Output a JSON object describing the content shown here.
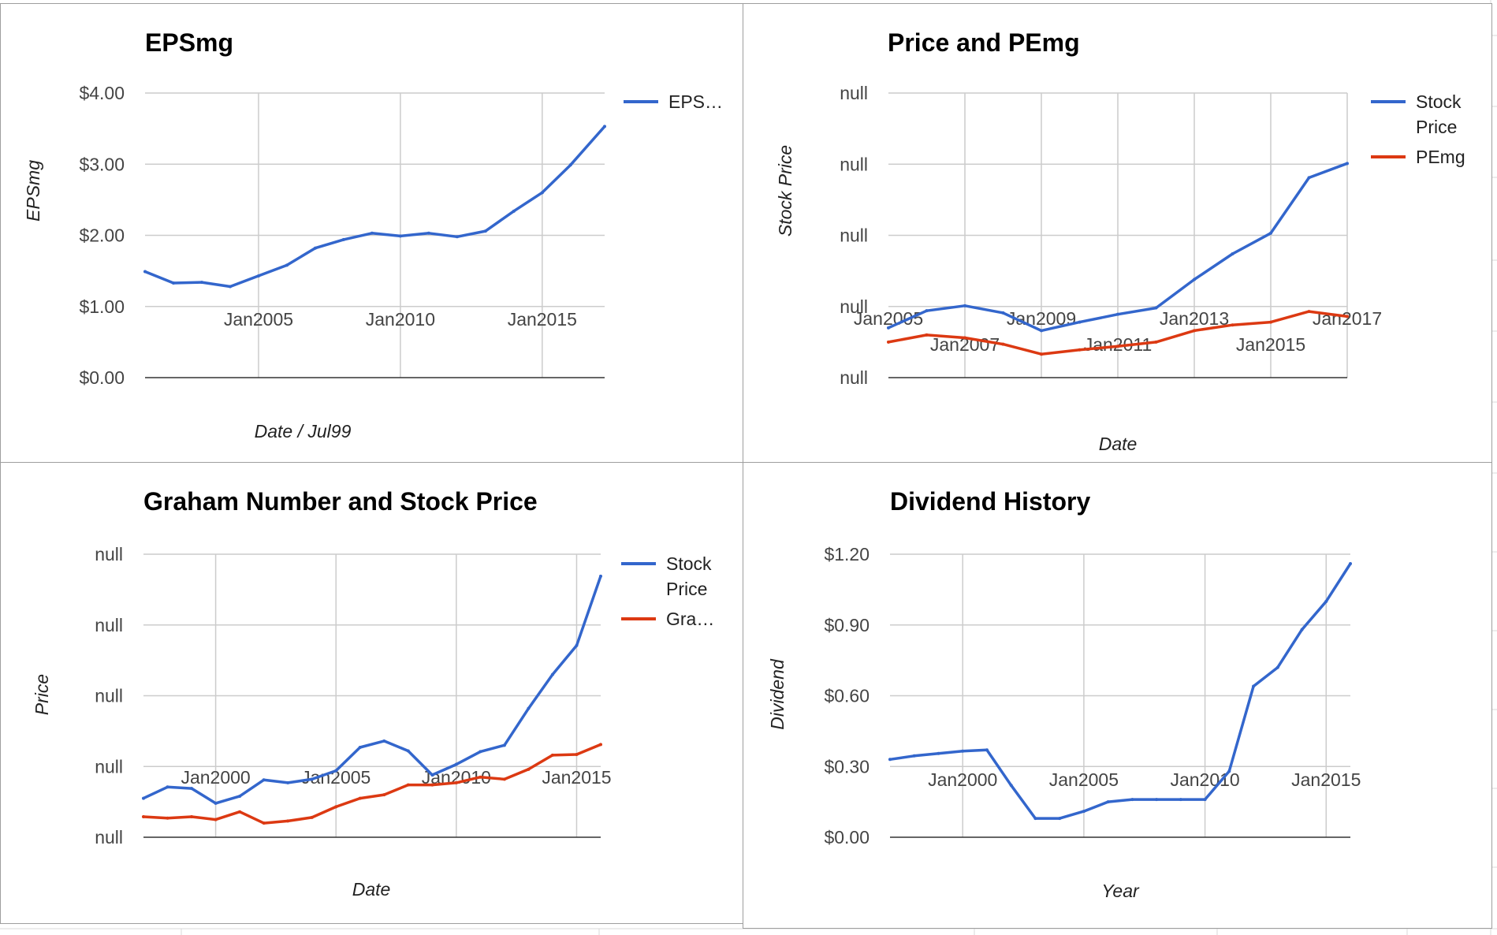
{
  "colors": {
    "blue": "#3366cc",
    "red": "#dc3912"
  },
  "chart_data": [
    {
      "id": "eps",
      "type": "line",
      "title": "EPSmg",
      "xlabel": "Date / Jul99",
      "ylabel": "EPSmg",
      "grid": true,
      "legend_position": "right",
      "xlim": [
        2001.0,
        2017.2
      ],
      "ylim": [
        0,
        4
      ],
      "y_ticks": [
        {
          "value": 0,
          "label": "$0.00"
        },
        {
          "value": 1,
          "label": "$1.00"
        },
        {
          "value": 2,
          "label": "$2.00"
        },
        {
          "value": 3,
          "label": "$3.00"
        },
        {
          "value": 4,
          "label": "$4.00"
        }
      ],
      "x_ticks": [
        {
          "value": 2005,
          "label": "Jan2005"
        },
        {
          "value": 2010,
          "label": "Jan2010"
        },
        {
          "value": 2015,
          "label": "Jan2015"
        }
      ],
      "series": [
        {
          "name": "EPS…",
          "color": "#3366cc",
          "x": [
            2001,
            2002,
            2003,
            2004,
            2005,
            2006,
            2007,
            2008,
            2009,
            2010,
            2011,
            2012,
            2013,
            2014,
            2015,
            2016,
            2017.2
          ],
          "y": [
            1.49,
            1.33,
            1.34,
            1.28,
            1.43,
            1.58,
            1.82,
            1.94,
            2.03,
            1.99,
            2.03,
            1.98,
            2.06,
            2.34,
            2.6,
            2.99,
            3.53
          ]
        }
      ]
    },
    {
      "id": "price_pe",
      "type": "line",
      "title": "Price and PEmg",
      "xlabel": "Date",
      "ylabel": "Stock Price",
      "grid": true,
      "legend_position": "right",
      "xlim": [
        2005,
        2017
      ],
      "ylim": [
        0,
        4
      ],
      "y_ticks": [
        {
          "value": 0,
          "label": "null"
        },
        {
          "value": 1,
          "label": "null"
        },
        {
          "value": 2,
          "label": "null"
        },
        {
          "value": 3,
          "label": "null"
        },
        {
          "value": 4,
          "label": "null"
        }
      ],
      "x_ticks": [
        {
          "value": 2005,
          "label": "Jan2005",
          "row": 0
        },
        {
          "value": 2007,
          "label": "Jan2007",
          "row": 1
        },
        {
          "value": 2009,
          "label": "Jan2009",
          "row": 0
        },
        {
          "value": 2011,
          "label": "Jan2011",
          "row": 1
        },
        {
          "value": 2013,
          "label": "Jan2013",
          "row": 0
        },
        {
          "value": 2015,
          "label": "Jan2015",
          "row": 1
        },
        {
          "value": 2017,
          "label": "Jan2017",
          "row": 0
        }
      ],
      "series": [
        {
          "name": "Stock Price",
          "name_lines": [
            "Stock",
            "Price"
          ],
          "color": "#3366cc",
          "x": [
            2005,
            2006,
            2007,
            2008,
            2009,
            2010,
            2011,
            2012,
            2013,
            2014,
            2015,
            2016,
            2017
          ],
          "y": [
            0.7,
            0.94,
            1.01,
            0.91,
            0.66,
            0.78,
            0.89,
            0.98,
            1.38,
            1.74,
            2.03,
            2.81,
            3.01
          ]
        },
        {
          "name": "PEmg",
          "name_lines": [
            "PEmg"
          ],
          "color": "#dc3912",
          "x": [
            2005,
            2006,
            2007,
            2008,
            2009,
            2010,
            2011,
            2012,
            2013,
            2014,
            2015,
            2016,
            2017
          ],
          "y": [
            0.5,
            0.6,
            0.56,
            0.47,
            0.33,
            0.39,
            0.44,
            0.5,
            0.66,
            0.74,
            0.78,
            0.93,
            0.86
          ]
        }
      ]
    },
    {
      "id": "graham",
      "type": "line",
      "title": "Graham Number and Stock Price",
      "xlabel": "Date",
      "ylabel": "Price",
      "grid": true,
      "legend_position": "right",
      "xlim": [
        1997,
        2016
      ],
      "ylim": [
        0,
        4
      ],
      "y_ticks": [
        {
          "value": 0,
          "label": "null"
        },
        {
          "value": 1,
          "label": "null"
        },
        {
          "value": 2,
          "label": "null"
        },
        {
          "value": 3,
          "label": "null"
        },
        {
          "value": 4,
          "label": "null"
        }
      ],
      "x_ticks": [
        {
          "value": 2000,
          "label": "Jan2000"
        },
        {
          "value": 2005,
          "label": "Jan2005"
        },
        {
          "value": 2010,
          "label": "Jan2010"
        },
        {
          "value": 2015,
          "label": "Jan2015"
        }
      ],
      "series": [
        {
          "name": "Stock Price",
          "name_lines": [
            "Stock",
            "Price"
          ],
          "color": "#3366cc",
          "x": [
            1997,
            1998,
            1999,
            2000,
            2001,
            2002,
            2003,
            2004,
            2005,
            2006,
            2007,
            2008,
            2009,
            2010,
            2011,
            2012,
            2013,
            2014,
            2015,
            2016
          ],
          "y": [
            0.55,
            0.71,
            0.69,
            0.48,
            0.58,
            0.81,
            0.77,
            0.82,
            0.94,
            1.27,
            1.36,
            1.22,
            0.88,
            1.03,
            1.21,
            1.3,
            1.82,
            2.3,
            2.71,
            3.69
          ]
        },
        {
          "name": "Gra…",
          "name_lines": [
            "Gra…"
          ],
          "color": "#dc3912",
          "x": [
            1997,
            1998,
            1999,
            2000,
            2001,
            2002,
            2003,
            2004,
            2005,
            2006,
            2007,
            2008,
            2009,
            2010,
            2011,
            2012,
            2013,
            2014,
            2015,
            2016
          ],
          "y": [
            0.29,
            0.27,
            0.29,
            0.25,
            0.36,
            0.2,
            0.23,
            0.28,
            0.43,
            0.55,
            0.6,
            0.74,
            0.74,
            0.77,
            0.85,
            0.82,
            0.96,
            1.16,
            1.17,
            1.31
          ]
        }
      ]
    },
    {
      "id": "dividend",
      "type": "line",
      "title": "Dividend History",
      "xlabel": "Year",
      "ylabel": "Dividend",
      "grid": true,
      "legend_position": "none",
      "xlim": [
        1997,
        2016
      ],
      "ylim": [
        0,
        1.2
      ],
      "y_ticks": [
        {
          "value": 0,
          "label": "$0.00"
        },
        {
          "value": 0.3,
          "label": "$0.30"
        },
        {
          "value": 0.6,
          "label": "$0.60"
        },
        {
          "value": 0.9,
          "label": "$0.90"
        },
        {
          "value": 1.2,
          "label": "$1.20"
        }
      ],
      "x_ticks": [
        {
          "value": 2000,
          "label": "Jan2000"
        },
        {
          "value": 2005,
          "label": "Jan2005"
        },
        {
          "value": 2010,
          "label": "Jan2010"
        },
        {
          "value": 2015,
          "label": "Jan2015"
        }
      ],
      "series": [
        {
          "name": "",
          "color": "#3366cc",
          "x": [
            1997,
            1998,
            1999,
            2000,
            2001,
            2002,
            2003,
            2004,
            2005,
            2006,
            2007,
            2008,
            2009,
            2010,
            2011,
            2012,
            2013,
            2014,
            2015,
            2016
          ],
          "y": [
            0.33,
            0.345,
            0.355,
            0.365,
            0.37,
            0.22,
            0.08,
            0.08,
            0.11,
            0.15,
            0.16,
            0.16,
            0.16,
            0.16,
            0.28,
            0.64,
            0.72,
            0.88,
            1.0,
            1.16
          ]
        }
      ]
    }
  ]
}
